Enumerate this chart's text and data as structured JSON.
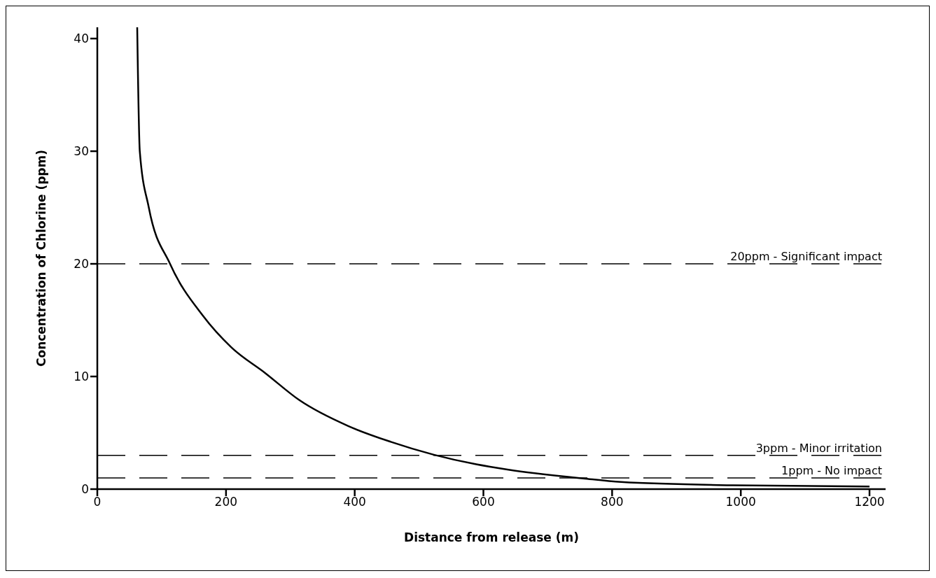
{
  "chart_data": {
    "type": "line",
    "xlabel": "Distance from release (m)",
    "ylabel": "Concentration of Chlorine (ppm)",
    "x": [
      62,
      66,
      80,
      113,
      164,
      208,
      261,
      314,
      390,
      456,
      523,
      589,
      639,
      755,
      814,
      988,
      1200
    ],
    "series": [
      {
        "color": "#000000",
        "values": [
          41,
          30,
          25,
          20,
          15.4,
          12.6,
          10.3,
          7.9,
          5.6,
          4.2,
          3.05,
          2.2,
          1.73,
          0.95,
          0.63,
          0.34,
          0.23
        ]
      }
    ],
    "xlim": [
      0,
      1225
    ],
    "xticks": [
      0,
      200,
      400,
      600,
      800,
      1000,
      1200
    ],
    "ylim": [
      0,
      41
    ],
    "yticks": [
      0,
      10,
      20,
      30,
      40
    ],
    "grid": false,
    "legend": false,
    "marker": "none",
    "line_style": "solid",
    "ref_lines": [
      {
        "axis": "y",
        "value": 20,
        "label": "20ppm - Significant impact",
        "color": "#000000",
        "line_style": "dashed"
      },
      {
        "axis": "y",
        "value": 3,
        "label": "3ppm - Minor irritation",
        "color": "#000000",
        "line_style": "dashed"
      },
      {
        "axis": "y",
        "value": 1,
        "label": "1ppm - No impact",
        "color": "#000000",
        "line_style": "dashed"
      }
    ]
  }
}
